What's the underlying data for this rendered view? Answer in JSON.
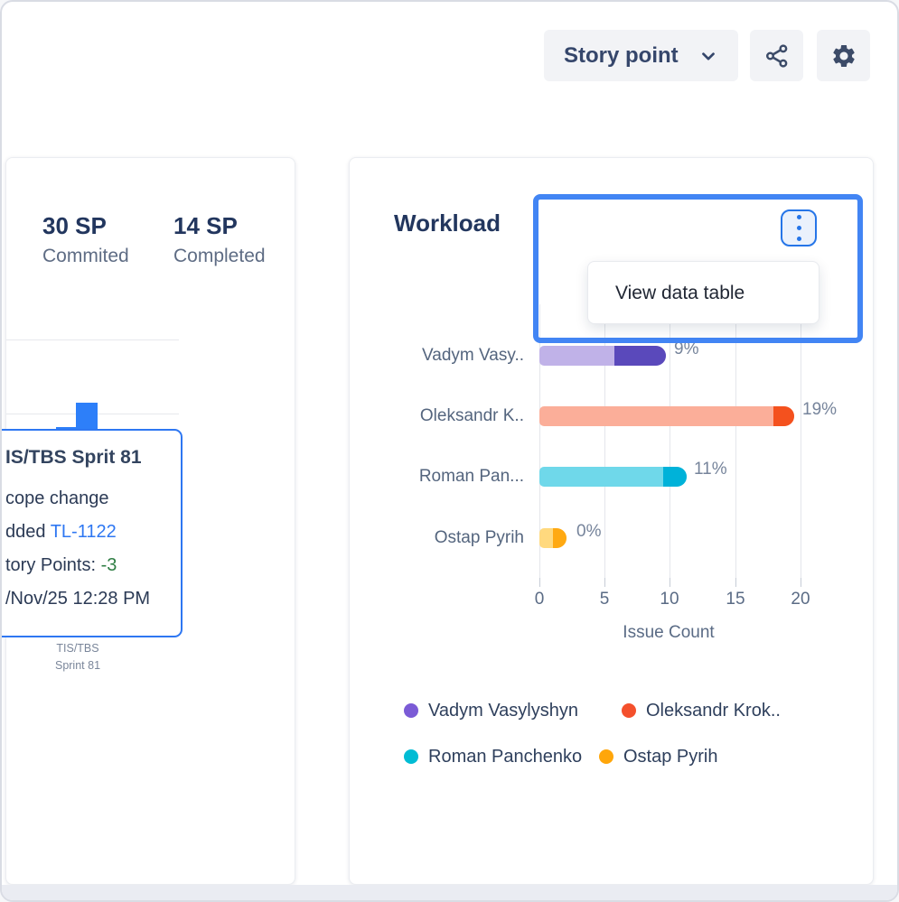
{
  "toolbar": {
    "metric_dropdown": {
      "label": "Story point",
      "icon": "chevron-down-icon"
    },
    "share_icon": "share-network-icon",
    "settings_icon": "gear-icon",
    "icon_color": "#3c4b68"
  },
  "sprint_card": {
    "stats": [
      {
        "value": "30 SP",
        "label": "Commited"
      },
      {
        "value": "14 SP",
        "label": "Completed"
      }
    ],
    "bar_color": "#2d7ff9",
    "tooltip": {
      "title": "IS/TBS Sprit 81",
      "line1": "cope change",
      "line2_prefix": "dded ",
      "line2_link": "TL-1122",
      "line3_prefix": "tory Points: ",
      "line3_value": "-3",
      "line4": "/Nov/25 12:28 PM",
      "border_color": "#2e77f2",
      "link_color": "#2e77f2",
      "negative_color": "#2e7d43"
    },
    "axis_label_line1": "TIS/TBS",
    "axis_label_line2": "Sprint 81"
  },
  "workload_card": {
    "title": "Workload",
    "menu_item": "View data table",
    "focus_color": "#4285f4",
    "chart_data": {
      "type": "bar",
      "orientation": "horizontal",
      "title": "Workload",
      "xlabel": "Issue Count",
      "xlim": [
        0,
        22
      ],
      "xticks": [
        "0",
        "5",
        "10",
        "15",
        "20"
      ],
      "grid": true,
      "legend_position": "bottom",
      "rows": [
        {
          "label": "Vadym Vasy..",
          "value": 9.7,
          "light_to": 5.75,
          "percent": "9%",
          "color_light": "#c0b2e8",
          "color_dark": "#5a49bb"
        },
        {
          "label": "Oleksandr K..",
          "value": 19.5,
          "light_to": 17.9,
          "percent": "19%",
          "color_light": "#fbae99",
          "color_dark": "#f4511e"
        },
        {
          "label": "Roman Pan...",
          "value": 11.3,
          "light_to": 9.5,
          "percent": "11%",
          "color_light": "#6fd8ea",
          "color_dark": "#00b2d9"
        },
        {
          "label": "Ostap Pyrih",
          "value": 2.08,
          "light_to": 1.05,
          "percent": "0%",
          "color_light": "#ffd97e",
          "color_dark": "#ffa912"
        }
      ]
    },
    "legend": [
      {
        "label": "Vadym Vasylyshyn",
        "color": "#7b5bd6"
      },
      {
        "label": "Oleksandr Krok..",
        "color": "#f4502c"
      },
      {
        "label": "Roman Panchenko",
        "color": "#00bcd4"
      },
      {
        "label": "Ostap Pyrih",
        "color": "#ffa60a"
      }
    ]
  }
}
